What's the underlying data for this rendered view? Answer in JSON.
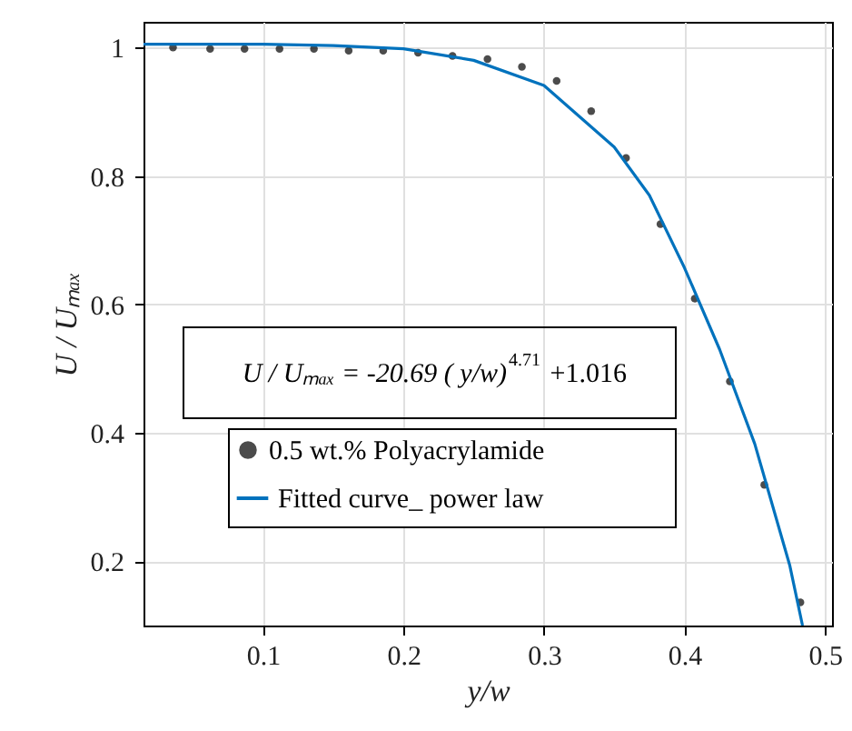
{
  "chart_data": {
    "type": "scatter",
    "xlabel": "y/w",
    "ylabel": "U / Uₘₐₓ",
    "xlim": [
      0.015,
      0.505
    ],
    "ylim": [
      0.1,
      1.04
    ],
    "xticks": [
      0.1,
      0.2,
      0.3,
      0.4,
      0.5
    ],
    "yticks": [
      0.2,
      0.4,
      0.6,
      0.8,
      1
    ],
    "grid": true,
    "legend": "left",
    "annotations": [
      "U / Uₘₐₓ = -20.69 ( y/w)$^{4.71}$ +1.016"
    ],
    "series": [
      {
        "name": "0.5 wt.% Polyacrylamide",
        "type": "scatter",
        "marker": "circle",
        "color": "#000000",
        "x": [
          0.036,
          0.0624,
          0.0869,
          0.1118,
          0.1363,
          0.161,
          0.1856,
          0.2104,
          0.2349,
          0.2598,
          0.2843,
          0.309,
          0.3336,
          0.3584,
          0.3829,
          0.4073,
          0.4323,
          0.4568,
          0.4825
        ],
        "values": [
          1.0,
          0.998,
          0.998,
          0.998,
          0.998,
          0.995,
          0.995,
          0.992,
          0.987,
          0.982,
          0.97,
          0.948,
          0.901,
          0.828,
          0.725,
          0.609,
          0.48,
          0.319,
          0.136
        ]
      },
      {
        "name": "Fitted curve_ power law",
        "type": "line",
        "line_style": "solid",
        "color": "#0072bd",
        "x": [
          0.015,
          0.05,
          0.1,
          0.15,
          0.2,
          0.25,
          0.3,
          0.35,
          0.375,
          0.4,
          0.425,
          0.45,
          0.475,
          0.484
        ],
        "values": [
          1.005,
          1.005,
          1.005,
          1.003,
          0.998,
          0.98,
          0.941,
          0.845,
          0.77,
          0.657,
          0.53,
          0.383,
          0.193,
          0.1
        ]
      }
    ]
  }
}
